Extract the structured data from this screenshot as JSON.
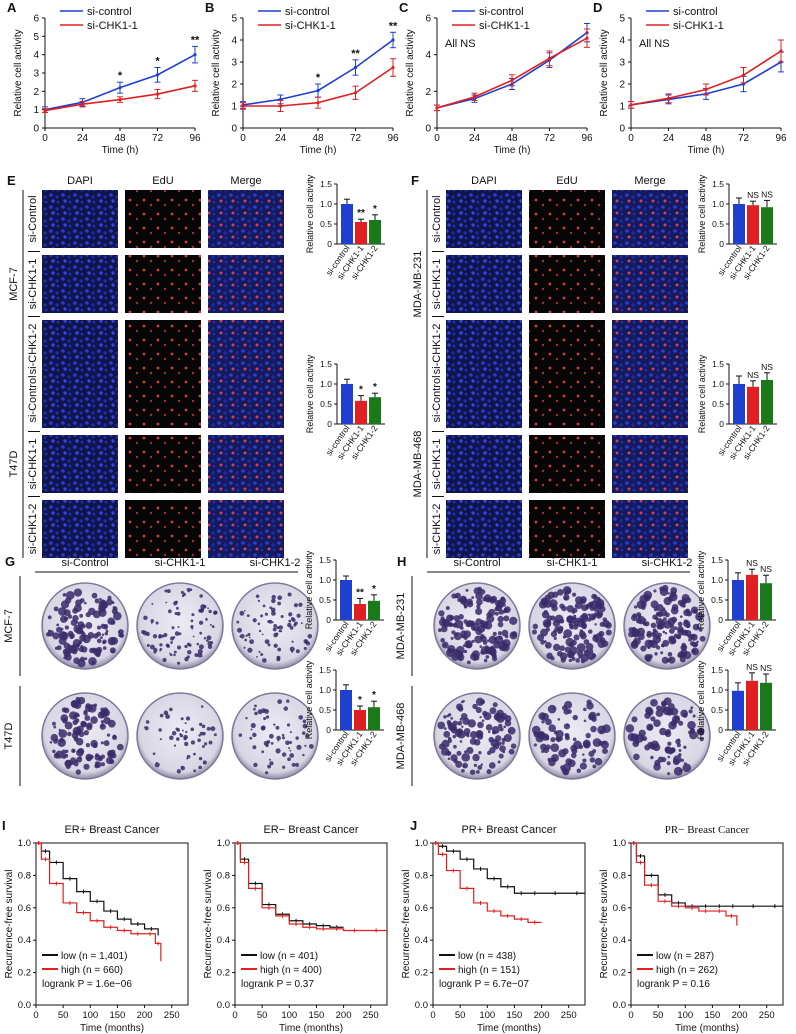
{
  "colors": {
    "blue": "#1f3fd1",
    "red": "#e02020",
    "green": "#1a7a1a",
    "plate": "#e8e6f0",
    "colony": "#3a2a6a"
  },
  "panel_labels": [
    "A",
    "B",
    "C",
    "D",
    "E",
    "F",
    "G",
    "H",
    "I",
    "J"
  ],
  "line_panels": [
    {
      "letter": "A",
      "legend": [
        "si-control",
        "si-CHK1-1"
      ],
      "note": "",
      "ylabel": "Relative cell activity",
      "xlabel": "Time (h)",
      "ylim": [
        0,
        6
      ],
      "yticks": [
        0,
        1,
        2,
        3,
        4,
        5,
        6
      ],
      "stars": [
        "",
        "",
        "*",
        "*",
        "**"
      ]
    },
    {
      "letter": "B",
      "legend": [
        "si-control",
        "si-CHK1-1"
      ],
      "note": "",
      "ylabel": "Relative cell activity",
      "xlabel": "Time (h)",
      "ylim": [
        0,
        5
      ],
      "yticks": [
        0,
        1,
        2,
        3,
        4,
        5
      ],
      "stars": [
        "",
        "",
        "*",
        "**",
        "**"
      ]
    },
    {
      "letter": "C",
      "legend": [
        "si-control",
        "si-CHK1-1"
      ],
      "note": "All NS",
      "ylabel": "Relative cell activity",
      "xlabel": "Time (h)",
      "ylim": [
        0,
        6
      ],
      "yticks": [
        0,
        2,
        4,
        6
      ],
      "stars": [
        "",
        "",
        "",
        "",
        ""
      ]
    },
    {
      "letter": "D",
      "legend": [
        "si-control",
        "si-CHK1-1"
      ],
      "note": "All NS",
      "ylabel": "Relative cell activity",
      "xlabel": "Time (h)",
      "ylim": [
        0,
        5
      ],
      "yticks": [
        0,
        1,
        2,
        3,
        4,
        5
      ],
      "stars": [
        "",
        "",
        "",
        "",
        ""
      ]
    }
  ],
  "micro_headers": [
    "DAPI",
    "EdU",
    "Merge"
  ],
  "micro_blocks": [
    {
      "cell_line": "MCF-7",
      "rows": [
        "si-Control",
        "si-CHK1-1",
        "si-CHK1-2"
      ]
    },
    {
      "cell_line": "T47D",
      "rows": [
        "si-Control",
        "si-CHK1-1",
        "si-CHK1-2"
      ]
    },
    {
      "cell_line": "MDA-MB-231",
      "rows": [
        "si-Control",
        "si-CHK1-1",
        "si-CHK1-2"
      ]
    },
    {
      "cell_line": "MDA-MB-468",
      "rows": [
        "si-Control",
        "si-CHK1-1",
        "si-CHK1-2"
      ]
    }
  ],
  "plate_headers": [
    "si-Control",
    "si-CHK1-1",
    "si-CHK1-2"
  ],
  "plate_rows": [
    "MCF-7",
    "T47D",
    "MDA-MB-231",
    "MDA-MB-468"
  ],
  "bar_categories": [
    "si-control",
    "si-CHK1-1",
    "si-CHK1-2"
  ],
  "bar_ylabel": "Relative cell activity",
  "bar_yticks": [
    "0",
    "0.5",
    "1.0",
    "1.5"
  ],
  "km_xlabel": "Time (months)",
  "km_ylabel": "Recurrence-free survival",
  "km_legend_low": "low",
  "km_legend_high": "high",
  "chart_data": [
    {
      "type": "line",
      "panel": "A",
      "x": [
        0,
        24,
        48,
        72,
        96
      ],
      "xlabel": "Time (h)",
      "ylabel": "Relative cell activity",
      "ylim": [
        0,
        6
      ],
      "series": [
        {
          "name": "si-control",
          "values": [
            1.0,
            1.4,
            2.2,
            2.9,
            4.0
          ],
          "err": [
            0.15,
            0.2,
            0.3,
            0.4,
            0.45
          ]
        },
        {
          "name": "si-CHK1-1",
          "values": [
            0.95,
            1.3,
            1.55,
            1.85,
            2.3
          ],
          "err": [
            0.1,
            0.15,
            0.15,
            0.25,
            0.3
          ]
        }
      ]
    },
    {
      "type": "line",
      "panel": "B",
      "x": [
        0,
        24,
        48,
        72,
        96
      ],
      "xlabel": "Time (h)",
      "ylabel": "Relative cell activity",
      "ylim": [
        0,
        5
      ],
      "series": [
        {
          "name": "si-control",
          "values": [
            1.05,
            1.3,
            1.7,
            2.75,
            4.0
          ],
          "err": [
            0.15,
            0.2,
            0.3,
            0.35,
            0.35
          ]
        },
        {
          "name": "si-CHK1-1",
          "values": [
            1.0,
            1.0,
            1.15,
            1.6,
            2.75
          ],
          "err": [
            0.15,
            0.25,
            0.25,
            0.3,
            0.4
          ]
        }
      ]
    },
    {
      "type": "line",
      "panel": "C",
      "x": [
        0,
        24,
        48,
        72,
        96
      ],
      "xlabel": "Time (h)",
      "ylabel": "Relative cell activity",
      "ylim": [
        0,
        6
      ],
      "series": [
        {
          "name": "si-control",
          "values": [
            1.1,
            1.6,
            2.4,
            3.7,
            5.2
          ],
          "err": [
            0.15,
            0.2,
            0.3,
            0.4,
            0.5
          ]
        },
        {
          "name": "si-CHK1-1",
          "values": [
            1.1,
            1.7,
            2.6,
            3.8,
            4.9
          ],
          "err": [
            0.15,
            0.2,
            0.3,
            0.4,
            0.5
          ]
        }
      ]
    },
    {
      "type": "line",
      "panel": "D",
      "x": [
        0,
        24,
        48,
        72,
        96
      ],
      "xlabel": "Time (h)",
      "ylabel": "Relative cell activity",
      "ylim": [
        0,
        5
      ],
      "series": [
        {
          "name": "si-control",
          "values": [
            1.05,
            1.3,
            1.55,
            2.0,
            3.0
          ],
          "err": [
            0.15,
            0.2,
            0.25,
            0.35,
            0.45
          ]
        },
        {
          "name": "si-CHK1-1",
          "values": [
            1.05,
            1.35,
            1.75,
            2.4,
            3.5
          ],
          "err": [
            0.15,
            0.2,
            0.25,
            0.35,
            0.5
          ]
        }
      ]
    },
    {
      "type": "bar",
      "panel": "E-MCF-7",
      "categories": [
        "si-control",
        "si-CHK1-1",
        "si-CHK1-2"
      ],
      "values": [
        1.0,
        0.55,
        0.6
      ],
      "err": [
        0.12,
        0.07,
        0.13
      ],
      "stars": [
        "",
        "**",
        "*"
      ],
      "ylim": [
        0,
        1.5
      ]
    },
    {
      "type": "bar",
      "panel": "E-T47D",
      "categories": [
        "si-control",
        "si-CHK1-1",
        "si-CHK1-2"
      ],
      "values": [
        1.0,
        0.58,
        0.67
      ],
      "err": [
        0.12,
        0.13,
        0.1
      ],
      "stars": [
        "",
        "*",
        "*"
      ],
      "ylim": [
        0,
        1.5
      ]
    },
    {
      "type": "bar",
      "panel": "F-MDA-MB-231",
      "categories": [
        "si-control",
        "si-CHK1-1",
        "si-CHK1-2"
      ],
      "values": [
        1.0,
        0.97,
        0.92
      ],
      "err": [
        0.15,
        0.1,
        0.17
      ],
      "stars": [
        "",
        "NS",
        "NS"
      ],
      "ylim": [
        0,
        1.5
      ]
    },
    {
      "type": "bar",
      "panel": "F-MDA-MB-468",
      "categories": [
        "si-control",
        "si-CHK1-1",
        "si-CHK1-2"
      ],
      "values": [
        1.0,
        0.93,
        1.1
      ],
      "err": [
        0.2,
        0.15,
        0.18
      ],
      "stars": [
        "",
        "NS",
        "NS"
      ],
      "ylim": [
        0,
        1.5
      ]
    },
    {
      "type": "bar",
      "panel": "G-MCF-7",
      "categories": [
        "si-control",
        "si-CHK1-1",
        "si-CHK1-2"
      ],
      "values": [
        1.0,
        0.4,
        0.48
      ],
      "err": [
        0.1,
        0.14,
        0.15
      ],
      "stars": [
        "",
        "**",
        "*"
      ],
      "ylim": [
        0,
        1.5
      ]
    },
    {
      "type": "bar",
      "panel": "G-T47D",
      "categories": [
        "si-control",
        "si-CHK1-1",
        "si-CHK1-2"
      ],
      "values": [
        1.0,
        0.5,
        0.57
      ],
      "err": [
        0.13,
        0.1,
        0.15
      ],
      "stars": [
        "",
        "*",
        "*"
      ],
      "ylim": [
        0,
        1.5
      ]
    },
    {
      "type": "bar",
      "panel": "H-MDA-MB-231",
      "categories": [
        "si-control",
        "si-CHK1-1",
        "si-CHK1-2"
      ],
      "values": [
        1.0,
        1.13,
        0.92
      ],
      "err": [
        0.18,
        0.14,
        0.2
      ],
      "stars": [
        "",
        "NS",
        "NS"
      ],
      "ylim": [
        0,
        1.5
      ]
    },
    {
      "type": "bar",
      "panel": "H-MDA-MB-468",
      "categories": [
        "si-control",
        "si-CHK1-1",
        "si-CHK1-2"
      ],
      "values": [
        0.98,
        1.23,
        1.18
      ],
      "err": [
        0.2,
        0.2,
        0.22
      ],
      "stars": [
        "",
        "NS",
        "NS"
      ],
      "ylim": [
        0,
        1.5
      ]
    },
    {
      "type": "line",
      "panel": "I-left",
      "title": "ER+ Breast Cancer",
      "xlabel": "Time (months)",
      "ylabel": "Recurrence-free survival",
      "xlim": [
        0,
        280
      ],
      "xticks": [
        0,
        50,
        100,
        150,
        200,
        250
      ],
      "ylim": [
        0,
        1.0
      ],
      "yticks": [
        0,
        0.2,
        0.4,
        0.6,
        0.8,
        1.0
      ],
      "legend": [
        "low (n = 1,401)",
        "high (n = 660)"
      ],
      "stat": "logrank P = 1.6e−06",
      "series": [
        {
          "name": "low",
          "x": [
            0,
            10,
            25,
            50,
            75,
            100,
            125,
            150,
            175,
            200,
            225
          ],
          "values": [
            1.0,
            0.95,
            0.88,
            0.78,
            0.7,
            0.64,
            0.58,
            0.53,
            0.5,
            0.47,
            0.43
          ]
        },
        {
          "name": "high",
          "x": [
            0,
            10,
            25,
            50,
            75,
            100,
            125,
            150,
            175,
            200,
            220,
            230
          ],
          "values": [
            1.0,
            0.9,
            0.75,
            0.63,
            0.57,
            0.52,
            0.48,
            0.46,
            0.44,
            0.44,
            0.38,
            0.27
          ]
        }
      ]
    },
    {
      "type": "line",
      "panel": "I-right",
      "title": "ER− Breast Cancer",
      "xlabel": "Time (months)",
      "ylabel": "Recurrence-free survival",
      "xlim": [
        0,
        280
      ],
      "xticks": [
        0,
        50,
        100,
        150,
        200,
        250
      ],
      "ylim": [
        0,
        1.0
      ],
      "yticks": [
        0,
        0.2,
        0.4,
        0.6,
        0.8,
        1.0
      ],
      "legend": [
        "low (n = 401)",
        "high (n = 400)"
      ],
      "stat": "logrank P = 0.37",
      "series": [
        {
          "name": "low",
          "x": [
            0,
            10,
            25,
            50,
            75,
            100,
            125,
            150,
            175,
            200
          ],
          "values": [
            1.0,
            0.9,
            0.75,
            0.62,
            0.56,
            0.52,
            0.5,
            0.49,
            0.48,
            0.48
          ]
        },
        {
          "name": "high",
          "x": [
            0,
            10,
            25,
            50,
            75,
            100,
            125,
            150,
            175,
            200,
            240,
            280
          ],
          "values": [
            1.0,
            0.88,
            0.72,
            0.6,
            0.55,
            0.5,
            0.48,
            0.47,
            0.47,
            0.46,
            0.46,
            0.46
          ]
        }
      ]
    },
    {
      "type": "line",
      "panel": "J-left",
      "title": "PR+ Breast Cancer",
      "xlabel": "Time (months)",
      "ylabel": "Recurrence-free survival",
      "xlim": [
        0,
        280
      ],
      "xticks": [
        0,
        50,
        100,
        150,
        200,
        250
      ],
      "ylim": [
        0,
        1.0
      ],
      "yticks": [
        0,
        0.2,
        0.4,
        0.6,
        0.8,
        1.0
      ],
      "legend": [
        "low (n = 438)",
        "high (n = 151)"
      ],
      "stat": "logrank P = 6.7e−07",
      "series": [
        {
          "name": "low",
          "x": [
            0,
            10,
            25,
            50,
            75,
            100,
            125,
            150,
            175,
            200,
            250,
            280
          ],
          "values": [
            1.0,
            0.98,
            0.95,
            0.9,
            0.84,
            0.78,
            0.73,
            0.69,
            0.69,
            0.69,
            0.69,
            0.69
          ]
        },
        {
          "name": "high",
          "x": [
            0,
            10,
            25,
            50,
            75,
            100,
            125,
            150,
            175,
            200
          ],
          "values": [
            1.0,
            0.93,
            0.83,
            0.72,
            0.63,
            0.58,
            0.55,
            0.53,
            0.51,
            0.51
          ]
        }
      ]
    },
    {
      "type": "line",
      "panel": "J-right",
      "title": "PR− Breast Cancer",
      "xlabel": "Time (months)",
      "ylabel": "Recurrence-free survival",
      "xlim": [
        0,
        280
      ],
      "xticks": [
        0,
        50,
        100,
        150,
        200,
        250
      ],
      "ylim": [
        0,
        1.0
      ],
      "yticks": [
        0,
        0.2,
        0.4,
        0.6,
        0.8,
        1.0
      ],
      "legend": [
        "low (n = 287)",
        "high (n = 262)"
      ],
      "stat": "logrank P = 0.16",
      "series": [
        {
          "name": "low",
          "x": [
            0,
            10,
            25,
            50,
            75,
            100,
            125,
            150,
            175,
            200,
            250,
            280
          ],
          "values": [
            1.0,
            0.92,
            0.8,
            0.68,
            0.63,
            0.61,
            0.61,
            0.61,
            0.61,
            0.61,
            0.61,
            0.61
          ]
        },
        {
          "name": "high",
          "x": [
            0,
            10,
            25,
            50,
            75,
            100,
            125,
            150,
            175,
            195
          ],
          "values": [
            1.0,
            0.88,
            0.74,
            0.64,
            0.61,
            0.6,
            0.58,
            0.58,
            0.55,
            0.49
          ]
        }
      ]
    }
  ]
}
